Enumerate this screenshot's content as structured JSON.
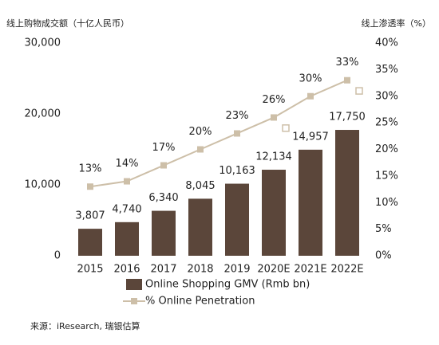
{
  "chart_data": {
    "type": "bar",
    "title": "线上购物成交额（十亿人民币）",
    "y2_title": "线上渗透率（%）",
    "source": "来源：iResearch, 瑞银估算",
    "categories": [
      "2015",
      "2016",
      "2017",
      "2018",
      "2019",
      "2020E",
      "2021E",
      "2022E"
    ],
    "series": [
      {
        "name": "Online Shopping GMV (Rmb bn)",
        "type": "bar",
        "color": "#5b463a",
        "values": [
          3807,
          4740,
          6340,
          8045,
          10163,
          12134,
          14957,
          17750
        ],
        "value_labels": [
          "3,807",
          "4,740",
          "6,340",
          "8,045",
          "10,163",
          "12,134",
          "14,957",
          "17,750"
        ]
      },
      {
        "name": "%  Online Penetration",
        "type": "line",
        "axis": "y2",
        "color": "#cdbfa8",
        "values": [
          13,
          14,
          17,
          20,
          23,
          26,
          30,
          33
        ],
        "value_labels": [
          "13%",
          "14%",
          "17%",
          "20%",
          "23%",
          "26%",
          "30%",
          "33%"
        ]
      },
      {
        "type": "scatter",
        "axis": "y2",
        "color": "#cdbfa8",
        "marker": "hollow-square",
        "values": [
          null,
          null,
          null,
          null,
          null,
          24,
          null,
          31
        ]
      }
    ],
    "ylim": [
      0,
      30000
    ],
    "yticks": [
      0,
      {
        "value": 10000,
        "label": "10,000"
      },
      {
        "value": 20000,
        "label": "20,000"
      },
      {
        "value": 30000,
        "label": "30,000"
      }
    ],
    "y2lim": [
      0,
      40
    ],
    "y2ticks": [
      {
        "value": 0,
        "label": "0%"
      },
      {
        "value": 5,
        "label": "5%"
      },
      {
        "value": 10,
        "label": "10%"
      },
      {
        "value": 15,
        "label": "15%"
      },
      {
        "value": 20,
        "label": "20%"
      },
      {
        "value": 25,
        "label": "25%"
      },
      {
        "value": 30,
        "label": "30%"
      },
      {
        "value": 35,
        "label": "35%"
      },
      {
        "value": 40,
        "label": "40%"
      }
    ],
    "grid": false
  }
}
